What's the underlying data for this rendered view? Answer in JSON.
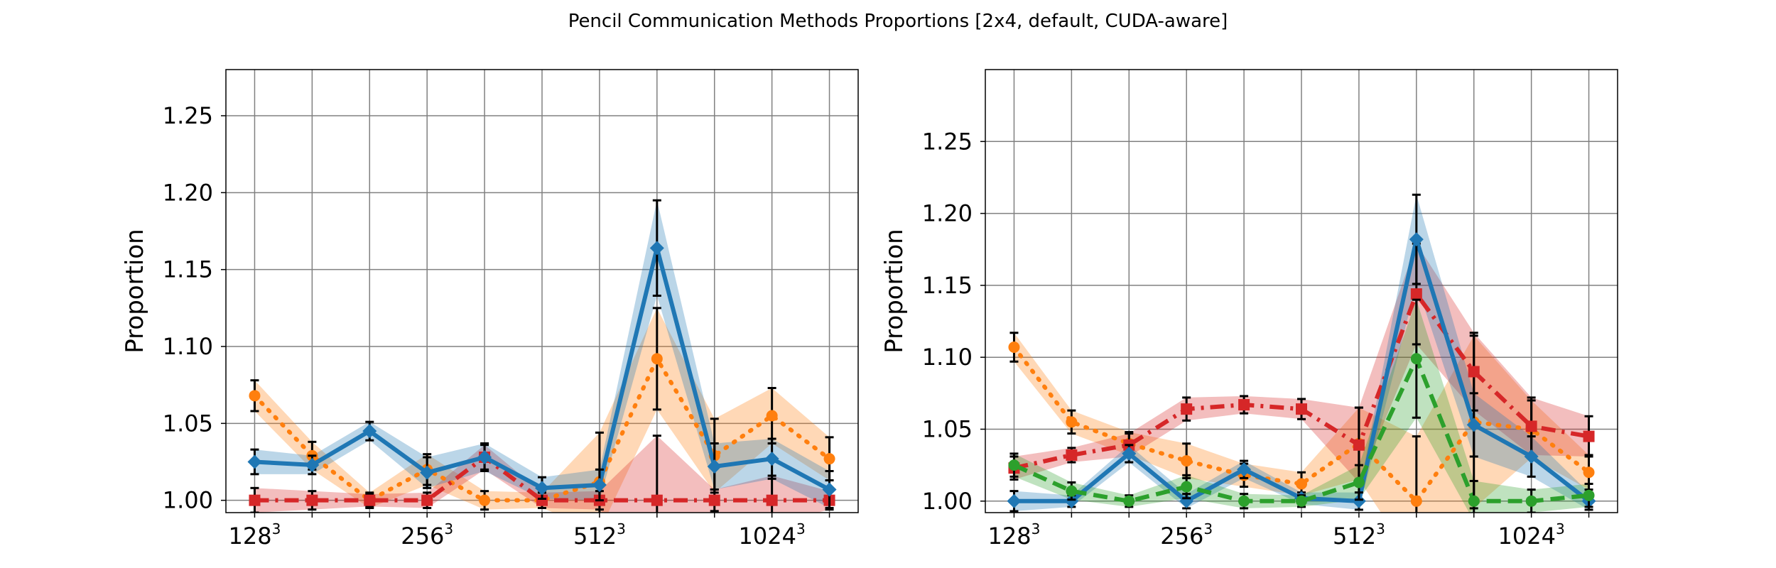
{
  "figure": {
    "title": "Pencil Communication Methods Proportions [2x4, default, CUDA-aware]"
  },
  "chart_data": [
    {
      "type": "line",
      "ylabel": "Proportion",
      "xlabel": "",
      "x": [
        0,
        1,
        2,
        3,
        4,
        5,
        6,
        7,
        8,
        9,
        10
      ],
      "xticks": [
        {
          "x": 0,
          "base": "128",
          "exp": "3"
        },
        {
          "x": 3,
          "base": "256",
          "exp": "3"
        },
        {
          "x": 6,
          "base": "512",
          "exp": "3"
        },
        {
          "x": 9,
          "base": "1024",
          "exp": "3"
        }
      ],
      "xlim": [
        -0.5,
        10.5
      ],
      "ylim": [
        0.992,
        1.28
      ],
      "yticks": [
        1.0,
        1.05,
        1.1,
        1.15,
        1.2,
        1.25
      ],
      "ytick_labels": [
        "1.00",
        "1.05",
        "1.10",
        "1.15",
        "1.20",
        "1.25"
      ],
      "grid": true,
      "series": [
        {
          "color": "#ff7f0e",
          "linestyle": "dotted",
          "marker": "circle",
          "values": [
            1.068,
            1.029,
            1.0,
            1.02,
            1.0,
            1.0,
            1.012,
            1.092,
            1.029,
            1.055,
            1.027
          ],
          "err": [
            0.01,
            0.009,
            0.005,
            0.01,
            0.006,
            0.005,
            0.032,
            0.033,
            0.024,
            0.018,
            0.014
          ]
        },
        {
          "color": "#d62728",
          "linestyle": "dashdot",
          "marker": "square",
          "values": [
            1.0,
            1.0,
            1.0,
            1.0,
            1.028,
            1.0,
            1.0,
            1.0,
            1.0,
            1.0,
            1.0
          ],
          "err": [
            0.008,
            0.006,
            0.004,
            0.005,
            0.008,
            0.005,
            0.006,
            0.042,
            0.007,
            0.016,
            0.006
          ]
        },
        {
          "color": "#1f77b4",
          "linestyle": "solid",
          "marker": "diamond",
          "values": [
            1.025,
            1.023,
            1.045,
            1.018,
            1.028,
            1.008,
            1.01,
            1.164,
            1.022,
            1.027,
            1.007
          ],
          "err": [
            0.008,
            0.006,
            0.006,
            0.01,
            0.009,
            0.007,
            0.01,
            0.031,
            0.015,
            0.013,
            0.012
          ]
        }
      ]
    },
    {
      "type": "line",
      "ylabel": "Proportion",
      "xlabel": "",
      "x": [
        0,
        1,
        2,
        3,
        4,
        5,
        6,
        7,
        8,
        9,
        10
      ],
      "xticks": [
        {
          "x": 0,
          "base": "128",
          "exp": "3"
        },
        {
          "x": 3,
          "base": "256",
          "exp": "3"
        },
        {
          "x": 6,
          "base": "512",
          "exp": "3"
        },
        {
          "x": 9,
          "base": "1024",
          "exp": "3"
        }
      ],
      "xlim": [
        -0.5,
        10.5
      ],
      "ylim": [
        0.992,
        1.3
      ],
      "yticks": [
        1.0,
        1.05,
        1.1,
        1.15,
        1.2,
        1.25
      ],
      "ytick_labels": [
        "1.00",
        "1.05",
        "1.10",
        "1.15",
        "1.20",
        "1.25"
      ],
      "grid": true,
      "series": [
        {
          "color": "#ff7f0e",
          "linestyle": "dotted",
          "marker": "circle",
          "values": [
            1.107,
            1.055,
            1.04,
            1.028,
            1.018,
            1.012,
            1.04,
            1.0,
            1.055,
            1.05,
            1.02
          ],
          "err": [
            0.01,
            0.008,
            0.008,
            0.012,
            0.008,
            0.008,
            0.025,
            0.045,
            0.06,
            0.02,
            0.012
          ]
        },
        {
          "color": "#d62728",
          "linestyle": "dashdot",
          "marker": "square",
          "values": [
            1.023,
            1.032,
            1.039,
            1.064,
            1.067,
            1.064,
            1.039,
            1.144,
            1.09,
            1.052,
            1.045
          ],
          "err": [
            0.008,
            0.005,
            0.008,
            0.008,
            0.006,
            0.007,
            0.026,
            0.035,
            0.027,
            0.02,
            0.014
          ]
        },
        {
          "color": "#1f77b4",
          "linestyle": "solid",
          "marker": "diamond",
          "values": [
            1.0,
            1.0,
            1.033,
            1.0,
            1.022,
            1.002,
            1.0,
            1.182,
            1.053,
            1.031,
            1.0
          ],
          "err": [
            0.007,
            0.004,
            0.006,
            0.005,
            0.006,
            0.004,
            0.006,
            0.031,
            0.022,
            0.014,
            0.006
          ]
        },
        {
          "color": "#2ca02c",
          "linestyle": "dashed",
          "marker": "circle",
          "values": [
            1.025,
            1.007,
            1.0,
            1.01,
            1.0,
            1.0,
            1.013,
            1.099,
            1.0,
            1.0,
            1.004
          ],
          "err": [
            0.008,
            0.006,
            0.004,
            0.008,
            0.005,
            0.004,
            0.012,
            0.041,
            0.014,
            0.008,
            0.008
          ]
        }
      ]
    }
  ]
}
